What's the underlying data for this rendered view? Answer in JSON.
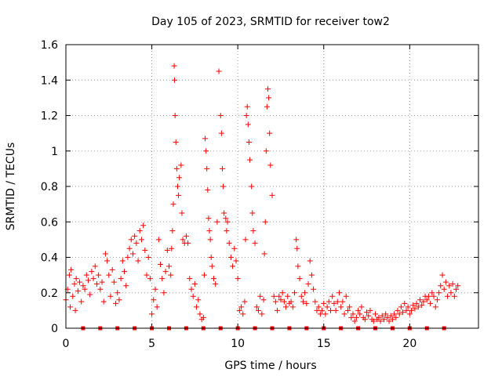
{
  "chart_data": {
    "type": "scatter",
    "title": "Day 105 of 2023, SRMTID for receiver tow2",
    "xlabel": "GPS time / hours",
    "ylabel": "SRMTID / TECUs",
    "xlim": [
      0,
      24
    ],
    "ylim": [
      0,
      1.6
    ],
    "xticks": [
      0,
      5,
      10,
      15,
      20
    ],
    "xtick_labels": [
      "0",
      "5",
      "10",
      "15",
      "20"
    ],
    "yticks": [
      0,
      0.2,
      0.4,
      0.6,
      0.8,
      1.0,
      1.2,
      1.4,
      1.6
    ],
    "ytick_labels": [
      "0",
      "0.2",
      "0.4",
      "0.6",
      "0.8",
      "1",
      "1.2",
      "1.4",
      "1.6"
    ],
    "grid": true,
    "marker": "+",
    "series_color": "#ff0000",
    "square_marker_y": 0,
    "square_marker_x": [
      1.0,
      2.0,
      3.0,
      4.0,
      5.0,
      6.0,
      7.0,
      8.0,
      9.0,
      10.0,
      11.0,
      12.0,
      13.0,
      14.0,
      15.0,
      16.0,
      17.0,
      18.0,
      19.0,
      20.0,
      21.0,
      22.0
    ],
    "series": [
      {
        "name": "SRMTID",
        "points": [
          [
            0.0,
            0.16
          ],
          [
            0.1,
            0.22
          ],
          [
            0.2,
            0.3
          ],
          [
            0.25,
            0.12
          ],
          [
            0.3,
            0.33
          ],
          [
            0.4,
            0.18
          ],
          [
            0.5,
            0.25
          ],
          [
            0.55,
            0.1
          ],
          [
            0.6,
            0.28
          ],
          [
            0.7,
            0.21
          ],
          [
            0.8,
            0.26
          ],
          [
            0.9,
            0.15
          ],
          [
            1.0,
            0.24
          ],
          [
            1.1,
            0.22
          ],
          [
            1.2,
            0.3
          ],
          [
            1.3,
            0.27
          ],
          [
            1.4,
            0.19
          ],
          [
            1.5,
            0.32
          ],
          [
            1.6,
            0.28
          ],
          [
            1.7,
            0.35
          ],
          [
            1.8,
            0.25
          ],
          [
            1.9,
            0.3
          ],
          [
            2.0,
            0.22
          ],
          [
            2.1,
            0.26
          ],
          [
            2.2,
            0.15
          ],
          [
            2.3,
            0.42
          ],
          [
            2.4,
            0.38
          ],
          [
            2.5,
            0.3
          ],
          [
            2.6,
            0.18
          ],
          [
            2.7,
            0.33
          ],
          [
            2.8,
            0.26
          ],
          [
            2.9,
            0.14
          ],
          [
            3.0,
            0.2
          ],
          [
            3.1,
            0.16
          ],
          [
            3.2,
            0.28
          ],
          [
            3.3,
            0.38
          ],
          [
            3.4,
            0.32
          ],
          [
            3.5,
            0.24
          ],
          [
            3.6,
            0.4
          ],
          [
            3.7,
            0.45
          ],
          [
            3.8,
            0.5
          ],
          [
            3.9,
            0.42
          ],
          [
            4.0,
            0.52
          ],
          [
            4.1,
            0.48
          ],
          [
            4.2,
            0.38
          ],
          [
            4.3,
            0.55
          ],
          [
            4.4,
            0.5
          ],
          [
            4.5,
            0.58
          ],
          [
            4.6,
            0.44
          ],
          [
            4.7,
            0.3
          ],
          [
            4.8,
            0.4
          ],
          [
            4.9,
            0.28
          ],
          [
            5.0,
            0.08
          ],
          [
            5.1,
            0.16
          ],
          [
            5.2,
            0.22
          ],
          [
            5.3,
            0.12
          ],
          [
            5.4,
            0.5
          ],
          [
            5.5,
            0.36
          ],
          [
            5.6,
            0.28
          ],
          [
            5.7,
            0.2
          ],
          [
            5.8,
            0.32
          ],
          [
            5.9,
            0.44
          ],
          [
            6.0,
            0.35
          ],
          [
            6.1,
            0.3
          ],
          [
            6.15,
            0.45
          ],
          [
            6.2,
            0.55
          ],
          [
            6.25,
            0.7
          ],
          [
            6.3,
            1.48
          ],
          [
            6.32,
            1.4
          ],
          [
            6.35,
            1.2
          ],
          [
            6.4,
            1.05
          ],
          [
            6.45,
            0.9
          ],
          [
            6.5,
            0.8
          ],
          [
            6.55,
            0.75
          ],
          [
            6.6,
            0.85
          ],
          [
            6.7,
            0.92
          ],
          [
            6.75,
            0.65
          ],
          [
            6.8,
            0.5
          ],
          [
            6.9,
            0.48
          ],
          [
            7.0,
            0.52
          ],
          [
            7.1,
            0.48
          ],
          [
            7.2,
            0.28
          ],
          [
            7.3,
            0.22
          ],
          [
            7.4,
            0.18
          ],
          [
            7.5,
            0.25
          ],
          [
            7.6,
            0.12
          ],
          [
            7.7,
            0.16
          ],
          [
            7.8,
            0.08
          ],
          [
            7.9,
            0.05
          ],
          [
            8.0,
            0.06
          ],
          [
            8.05,
            0.3
          ],
          [
            8.1,
            1.07
          ],
          [
            8.15,
            1.0
          ],
          [
            8.2,
            0.9
          ],
          [
            8.25,
            0.78
          ],
          [
            8.3,
            0.62
          ],
          [
            8.35,
            0.55
          ],
          [
            8.4,
            0.5
          ],
          [
            8.45,
            0.4
          ],
          [
            8.5,
            0.35
          ],
          [
            8.6,
            0.28
          ],
          [
            8.7,
            0.25
          ],
          [
            8.8,
            0.6
          ],
          [
            8.9,
            1.45
          ],
          [
            9.0,
            1.2
          ],
          [
            9.05,
            1.1
          ],
          [
            9.1,
            0.9
          ],
          [
            9.15,
            0.8
          ],
          [
            9.2,
            0.65
          ],
          [
            9.3,
            0.62
          ],
          [
            9.35,
            0.55
          ],
          [
            9.4,
            0.6
          ],
          [
            9.5,
            0.48
          ],
          [
            9.6,
            0.4
          ],
          [
            9.7,
            0.35
          ],
          [
            9.8,
            0.45
          ],
          [
            9.9,
            0.38
          ],
          [
            10.0,
            0.28
          ],
          [
            10.1,
            0.1
          ],
          [
            10.2,
            0.12
          ],
          [
            10.3,
            0.08
          ],
          [
            10.4,
            0.15
          ],
          [
            10.45,
            0.5
          ],
          [
            10.5,
            1.2
          ],
          [
            10.55,
            1.25
          ],
          [
            10.6,
            1.15
          ],
          [
            10.65,
            1.05
          ],
          [
            10.7,
            0.95
          ],
          [
            10.8,
            0.8
          ],
          [
            10.85,
            0.65
          ],
          [
            10.9,
            0.55
          ],
          [
            11.0,
            0.48
          ],
          [
            11.1,
            0.12
          ],
          [
            11.2,
            0.1
          ],
          [
            11.3,
            0.18
          ],
          [
            11.4,
            0.08
          ],
          [
            11.5,
            0.16
          ],
          [
            11.55,
            0.42
          ],
          [
            11.6,
            0.6
          ],
          [
            11.65,
            1.0
          ],
          [
            11.7,
            1.25
          ],
          [
            11.75,
            1.35
          ],
          [
            11.8,
            1.3
          ],
          [
            11.85,
            1.1
          ],
          [
            11.9,
            0.92
          ],
          [
            12.0,
            0.75
          ],
          [
            12.1,
            0.18
          ],
          [
            12.2,
            0.15
          ],
          [
            12.3,
            0.1
          ],
          [
            12.4,
            0.18
          ],
          [
            12.5,
            0.16
          ],
          [
            12.6,
            0.2
          ],
          [
            12.7,
            0.15
          ],
          [
            12.8,
            0.12
          ],
          [
            12.9,
            0.18
          ],
          [
            13.0,
            0.14
          ],
          [
            13.1,
            0.15
          ],
          [
            13.2,
            0.12
          ],
          [
            13.3,
            0.2
          ],
          [
            13.4,
            0.5
          ],
          [
            13.45,
            0.45
          ],
          [
            13.5,
            0.35
          ],
          [
            13.6,
            0.28
          ],
          [
            13.7,
            0.18
          ],
          [
            13.8,
            0.15
          ],
          [
            13.9,
            0.2
          ],
          [
            14.0,
            0.14
          ],
          [
            14.1,
            0.25
          ],
          [
            14.2,
            0.38
          ],
          [
            14.3,
            0.3
          ],
          [
            14.4,
            0.22
          ],
          [
            14.5,
            0.15
          ],
          [
            14.6,
            0.1
          ],
          [
            14.7,
            0.12
          ],
          [
            14.8,
            0.08
          ],
          [
            14.9,
            0.1
          ],
          [
            15.0,
            0.14
          ],
          [
            15.1,
            0.08
          ],
          [
            15.2,
            0.12
          ],
          [
            15.3,
            0.15
          ],
          [
            15.4,
            0.1
          ],
          [
            15.5,
            0.18
          ],
          [
            15.6,
            0.14
          ],
          [
            15.7,
            0.1
          ],
          [
            15.8,
            0.15
          ],
          [
            15.9,
            0.2
          ],
          [
            16.0,
            0.12
          ],
          [
            16.1,
            0.15
          ],
          [
            16.2,
            0.08
          ],
          [
            16.3,
            0.18
          ],
          [
            16.4,
            0.1
          ],
          [
            16.5,
            0.12
          ],
          [
            16.6,
            0.06
          ],
          [
            16.7,
            0.08
          ],
          [
            16.8,
            0.04
          ],
          [
            16.9,
            0.06
          ],
          [
            17.0,
            0.1
          ],
          [
            17.1,
            0.08
          ],
          [
            17.2,
            0.12
          ],
          [
            17.3,
            0.06
          ],
          [
            17.4,
            0.05
          ],
          [
            17.5,
            0.09
          ],
          [
            17.6,
            0.07
          ],
          [
            17.7,
            0.1
          ],
          [
            17.8,
            0.05
          ],
          [
            17.9,
            0.04
          ],
          [
            18.0,
            0.08
          ],
          [
            18.1,
            0.05
          ],
          [
            18.2,
            0.06
          ],
          [
            18.3,
            0.04
          ],
          [
            18.4,
            0.07
          ],
          [
            18.5,
            0.05
          ],
          [
            18.6,
            0.08
          ],
          [
            18.7,
            0.06
          ],
          [
            18.8,
            0.04
          ],
          [
            18.9,
            0.07
          ],
          [
            19.0,
            0.05
          ],
          [
            19.1,
            0.08
          ],
          [
            19.2,
            0.06
          ],
          [
            19.3,
            0.1
          ],
          [
            19.4,
            0.08
          ],
          [
            19.5,
            0.12
          ],
          [
            19.6,
            0.09
          ],
          [
            19.7,
            0.14
          ],
          [
            19.8,
            0.1
          ],
          [
            19.9,
            0.12
          ],
          [
            20.0,
            0.08
          ],
          [
            20.1,
            0.1
          ],
          [
            20.2,
            0.13
          ],
          [
            20.3,
            0.11
          ],
          [
            20.4,
            0.14
          ],
          [
            20.5,
            0.12
          ],
          [
            20.6,
            0.16
          ],
          [
            20.7,
            0.13
          ],
          [
            20.8,
            0.15
          ],
          [
            20.9,
            0.18
          ],
          [
            21.0,
            0.16
          ],
          [
            21.1,
            0.18
          ],
          [
            21.2,
            0.14
          ],
          [
            21.3,
            0.2
          ],
          [
            21.4,
            0.18
          ],
          [
            21.5,
            0.12
          ],
          [
            21.6,
            0.16
          ],
          [
            21.7,
            0.2
          ],
          [
            21.8,
            0.24
          ],
          [
            21.9,
            0.3
          ],
          [
            22.0,
            0.22
          ],
          [
            22.1,
            0.26
          ],
          [
            22.2,
            0.18
          ],
          [
            22.3,
            0.24
          ],
          [
            22.4,
            0.2
          ],
          [
            22.5,
            0.25
          ],
          [
            22.6,
            0.18
          ],
          [
            22.7,
            0.22
          ],
          [
            22.8,
            0.24
          ]
        ]
      }
    ]
  }
}
